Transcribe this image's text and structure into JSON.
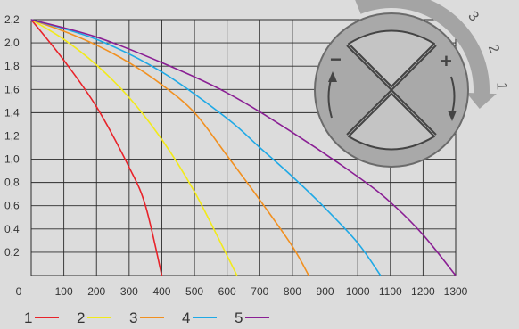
{
  "chart_data": {
    "type": "line",
    "x_ticks": [
      "0",
      "100",
      "200",
      "300",
      "400",
      "500",
      "600",
      "700",
      "800",
      "900",
      "1000",
      "1100",
      "1200",
      "1300"
    ],
    "y_ticks": [
      "0,2",
      "0,4",
      "0,6",
      "0,8",
      "1,0",
      "1,2",
      "1,4",
      "1,6",
      "1,8",
      "2,0",
      "2,2"
    ],
    "xlim": [
      0,
      1300
    ],
    "ylim": [
      0,
      2.2
    ],
    "grid": true,
    "legend_position": "bottom-left",
    "series": [
      {
        "name": "1",
        "color": "#e8232a",
        "x": [
          0,
          100,
          200,
          300,
          350,
          400
        ],
        "y": [
          2.2,
          1.85,
          1.45,
          0.93,
          0.6,
          0
        ]
      },
      {
        "name": "2",
        "color": "#f2ea1a",
        "x": [
          0,
          100,
          200,
          300,
          400,
          500,
          600,
          630
        ],
        "y": [
          2.2,
          2.03,
          1.81,
          1.53,
          1.17,
          0.72,
          0.17,
          0
        ]
      },
      {
        "name": "3",
        "color": "#f19020",
        "x": [
          0,
          100,
          200,
          300,
          400,
          500,
          600,
          700,
          800,
          850
        ],
        "y": [
          2.2,
          2.1,
          1.98,
          1.83,
          1.64,
          1.4,
          1.03,
          0.65,
          0.25,
          0
        ]
      },
      {
        "name": "4",
        "color": "#1fa9e6",
        "x": [
          0,
          200,
          400,
          600,
          700,
          800,
          900,
          1000,
          1070
        ],
        "y": [
          2.2,
          2.03,
          1.75,
          1.35,
          1.1,
          0.85,
          0.58,
          0.28,
          0
        ]
      },
      {
        "name": "5",
        "color": "#8a1f94",
        "x": [
          0,
          200,
          400,
          600,
          800,
          1000,
          1100,
          1200,
          1300
        ],
        "y": [
          2.2,
          2.05,
          1.83,
          1.57,
          1.23,
          0.85,
          0.63,
          0.35,
          0
        ]
      }
    ]
  },
  "dial": {
    "minus_symbol": "−",
    "plus_symbol": "+",
    "arrow_labels": [
      "3",
      "2",
      "1"
    ],
    "colors": {
      "face": "#a9a9a9",
      "rim": "#6b6b6b",
      "button": "#c4c4c4",
      "arrow": "#a4a4a4"
    }
  }
}
